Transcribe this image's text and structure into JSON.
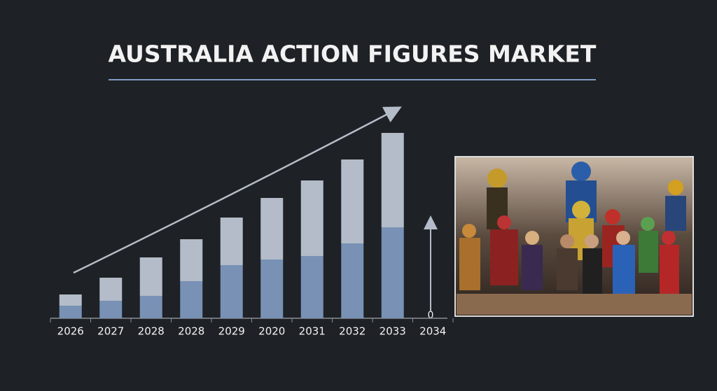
{
  "chart_data": {
    "type": "bar",
    "title": "AUSTRALIA ACTION FIGURES MARKET",
    "categories": [
      "2026",
      "2027",
      "2028",
      "2028",
      "2029",
      "2020",
      "2031",
      "2032",
      "2033",
      "2034"
    ],
    "series": [
      {
        "color": "#7891b5",
        "values": [
          18,
          25,
          32,
          53,
          76,
          84,
          89,
          107,
          130,
          null
        ]
      },
      {
        "color": "#b3bcc8",
        "values": [
          16,
          33,
          55,
          60,
          68,
          88,
          108,
          120,
          135,
          null
        ]
      }
    ],
    "stacked": true,
    "ylim": [
      0,
      300
    ],
    "yticks": [
      0
    ]
  }
}
